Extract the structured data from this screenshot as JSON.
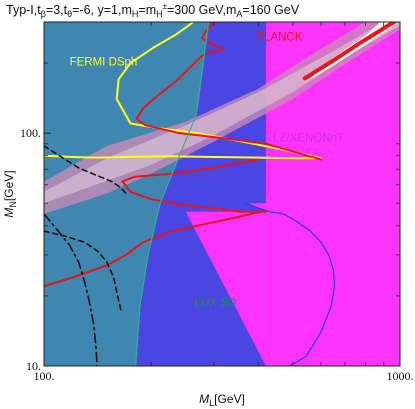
{
  "chart_data": {
    "type": "area",
    "title": "Typ-I,t_β=3,t_θ=-6, y=1,m_H=m_H±=300 GeV,m_A=160 GeV",
    "title_parts": {
      "prefix": "Typ-I,t",
      "sub1": "β",
      "mid1": "=3,t",
      "sub2": "θ",
      "mid2": "=-6, y=1,m",
      "sub3": "H",
      "mid3": "=m",
      "sub4": "H",
      "sup4": "±",
      "mid4": "=300 GeV,m",
      "sub5": "A",
      "tail": "=160 GeV"
    },
    "xlabel": "M_L[GeV]",
    "xlabel_parts": {
      "main": "M",
      "sub": "L",
      "unit": "[GeV]"
    },
    "ylabel": "M_N[GeV]",
    "ylabel_parts": {
      "main": "M",
      "sub": "N",
      "unit": "[GeV]"
    },
    "xscale": "log",
    "yscale": "log",
    "xlim": [
      100,
      1000
    ],
    "ylim": [
      10,
      300
    ],
    "x_tick_labels": [
      {
        "value": 100,
        "label": "100."
      },
      {
        "value": 1000,
        "label": "1000."
      }
    ],
    "y_tick_labels": [
      {
        "value": 10,
        "label": "10."
      },
      {
        "value": 100,
        "label": "100."
      }
    ],
    "grid": false,
    "colors": {
      "background": "#3f87b0",
      "lux_region": "#4a46e4",
      "lz_region": "#ff33ff",
      "lz_dark": "#c92ed6",
      "fermi": "#ffff1a",
      "planck": "#e81616",
      "lux_boundary": "#2fb58c",
      "band_outer": "#c98ab6",
      "band_inner": "#d8c0d4",
      "band_core": "#ffffff",
      "dashed": "#111111"
    },
    "region_labels": [
      {
        "name": "fermi",
        "text": "FERMI DSph",
        "color": "#ffff1a",
        "x": 118,
        "y": 195
      },
      {
        "name": "planck",
        "text": "PLANCK",
        "color": "#e81616",
        "x": 395,
        "y": 250
      },
      {
        "name": "lz",
        "text": "LZ/XENONnT",
        "color": "#cc33dd",
        "x": 440,
        "y": 92
      },
      {
        "name": "lux",
        "text": "LUX SD",
        "color": "#1d8c60",
        "x": 265,
        "y": 18
      }
    ],
    "regions": {
      "lux": [
        [
          290,
          300
        ],
        [
          280,
          200
        ],
        [
          268,
          120
        ],
        [
          240,
          80
        ],
        [
          212,
          50
        ],
        [
          196,
          30
        ],
        [
          186,
          18
        ],
        [
          181,
          10
        ],
        [
          1000,
          10
        ],
        [
          1000,
          300
        ]
      ],
      "lz": [
        [
          420,
          300
        ],
        [
          420,
          10
        ],
        [
          1000,
          10
        ],
        [
          1000,
          300
        ]
      ],
      "lz_bottom_lobe": [
        [
          370,
          50
        ],
        [
          395,
          48
        ],
        [
          430,
          46
        ],
        [
          470,
          45
        ],
        [
          510,
          42
        ],
        [
          560,
          38
        ],
        [
          600,
          34
        ],
        [
          630,
          30
        ],
        [
          650,
          26
        ],
        [
          655,
          22
        ],
        [
          640,
          18
        ],
        [
          600,
          14
        ],
        [
          545,
          11
        ],
        [
          490,
          10
        ],
        [
          420,
          10
        ],
        [
          420,
          50
        ]
      ],
      "lz_triangle": [
        [
          250,
          46
        ],
        [
          420,
          46
        ],
        [
          420,
          10
        ]
      ],
      "band_outer": [
        [
          100,
          45
        ],
        [
          150,
          55
        ],
        [
          200,
          67
        ],
        [
          300,
          92
        ],
        [
          500,
          140
        ],
        [
          700,
          198
        ],
        [
          1000,
          280
        ],
        [
          1000,
          300
        ],
        [
          800,
          300
        ],
        [
          600,
          230
        ],
        [
          400,
          155
        ],
        [
          250,
          112
        ],
        [
          150,
          88
        ],
        [
          100,
          62
        ]
      ],
      "band_inner": [
        [
          100,
          50
        ],
        [
          200,
          73
        ],
        [
          300,
          98
        ],
        [
          500,
          150
        ],
        [
          700,
          210
        ],
        [
          1000,
          290
        ],
        [
          1000,
          300
        ],
        [
          900,
          300
        ],
        [
          650,
          225
        ],
        [
          400,
          150
        ],
        [
          250,
          108
        ],
        [
          150,
          78
        ],
        [
          100,
          56
        ]
      ],
      "band_core": [
        [
          560,
          170
        ],
        [
          650,
          195
        ],
        [
          750,
          225
        ],
        [
          850,
          255
        ],
        [
          950,
          285
        ],
        [
          960,
          300
        ],
        [
          880,
          300
        ],
        [
          800,
          262
        ],
        [
          700,
          228
        ],
        [
          600,
          192
        ]
      ]
    },
    "series": [
      {
        "name": "fermi",
        "color": "#ffff1a",
        "width": 2,
        "dash": "",
        "points": [
          [
            100,
            80
          ],
          [
            120,
            79
          ],
          [
            140,
            78.5
          ],
          [
            170,
            79
          ],
          [
            220,
            79.5
          ],
          [
            300,
            79
          ],
          [
            400,
            78.5
          ],
          [
            500,
            78
          ],
          [
            600,
            78
          ],
          [
            560,
            80
          ],
          [
            470,
            85
          ],
          [
            360,
            92
          ],
          [
            270,
            100
          ],
          [
            210,
            105
          ],
          [
            175,
            110
          ],
          [
            160,
            140
          ],
          [
            162,
            170
          ],
          [
            175,
            200
          ],
          [
            205,
            235
          ],
          [
            235,
            265
          ],
          [
            255,
            290
          ],
          [
            262,
            300
          ]
        ]
      },
      {
        "name": "planck_upper",
        "color": "#e81616",
        "width": 2,
        "dash": "",
        "points": [
          [
            300,
            300
          ],
          [
            283,
            270
          ],
          [
            278,
            255
          ],
          [
            305,
            236
          ],
          [
            318,
            232
          ],
          [
            310,
            226
          ],
          [
            292,
            222
          ],
          [
            278,
            215
          ],
          [
            258,
            192
          ],
          [
            238,
            170
          ],
          [
            210,
            146
          ],
          [
            190,
            128
          ],
          [
            182,
            115
          ],
          [
            193,
            108
          ],
          [
            240,
            100
          ],
          [
            320,
            95
          ],
          [
            420,
            90
          ],
          [
            520,
            82
          ],
          [
            600,
            77
          ]
        ]
      },
      {
        "name": "planck_lower",
        "color": "#e81616",
        "width": 2,
        "dash": "",
        "points": [
          [
            100,
            22
          ],
          [
            120,
            24
          ],
          [
            150,
            27
          ],
          [
            170,
            30
          ],
          [
            190,
            34
          ],
          [
            230,
            38
          ],
          [
            290,
            41
          ],
          [
            360,
            44
          ],
          [
            420,
            46.5
          ],
          [
            420,
            46
          ],
          [
            360,
            46
          ],
          [
            300,
            47.5
          ],
          [
            250,
            49
          ],
          [
            200,
            52
          ],
          [
            175,
            56
          ],
          [
            166,
            62
          ],
          [
            180,
            65
          ],
          [
            230,
            67
          ],
          [
            300,
            71
          ],
          [
            400,
            77
          ]
        ]
      },
      {
        "name": "planck_thick",
        "color": "#e81616",
        "width": 4,
        "dash": "",
        "points": [
          [
            540,
            172
          ],
          [
            650,
            205
          ],
          [
            760,
            240
          ],
          [
            860,
            270
          ],
          [
            960,
            300
          ]
        ]
      },
      {
        "name": "lux_boundary",
        "color": "#2fb58c",
        "width": 1.2,
        "dash": "",
        "points": [
          [
            290,
            300
          ],
          [
            280,
            200
          ],
          [
            268,
            120
          ],
          [
            240,
            80
          ],
          [
            212,
            50
          ],
          [
            196,
            30
          ],
          [
            186,
            18
          ],
          [
            181,
            10
          ]
        ]
      },
      {
        "name": "lz_outline",
        "color": "#3a38d6",
        "width": 1.2,
        "dash": "",
        "points": [
          [
            370,
            50
          ],
          [
            395,
            48
          ],
          [
            430,
            46
          ],
          [
            470,
            45
          ],
          [
            510,
            42
          ],
          [
            560,
            38
          ],
          [
            600,
            34
          ],
          [
            630,
            30
          ],
          [
            650,
            26
          ],
          [
            655,
            22
          ],
          [
            640,
            18
          ],
          [
            600,
            14
          ],
          [
            545,
            11
          ],
          [
            490,
            10
          ]
        ]
      },
      {
        "name": "dashed_upper",
        "color": "#111111",
        "width": 1.6,
        "dash": "5 4",
        "points": [
          [
            100,
            88
          ],
          [
            112,
            79
          ],
          [
            125,
            71
          ],
          [
            140,
            66
          ],
          [
            155,
            62
          ],
          [
            165,
            58
          ],
          [
            170,
            55
          ]
        ]
      },
      {
        "name": "dashed_lower",
        "color": "#111111",
        "width": 1.6,
        "dash": "5 4",
        "points": [
          [
            100,
            38
          ],
          [
            115,
            36
          ],
          [
            130,
            34
          ],
          [
            142,
            31
          ],
          [
            150,
            28
          ],
          [
            157,
            24
          ],
          [
            161,
            20
          ],
          [
            165,
            17
          ]
        ]
      },
      {
        "name": "dashdot",
        "color": "#111111",
        "width": 1.6,
        "dash": "9 4 2 4",
        "points": [
          [
            100,
            45
          ],
          [
            108,
            39
          ],
          [
            118,
            33
          ],
          [
            125,
            28
          ],
          [
            130,
            23
          ],
          [
            134,
            19
          ],
          [
            138,
            15
          ],
          [
            140,
            12
          ],
          [
            141,
            10
          ]
        ]
      }
    ]
  }
}
